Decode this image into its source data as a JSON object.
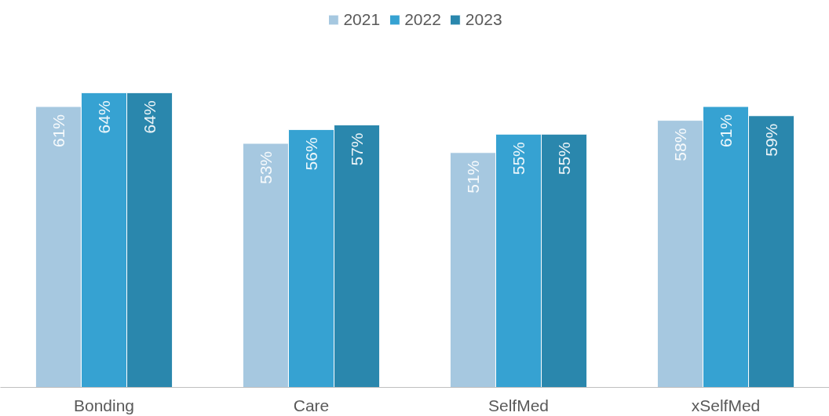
{
  "chart_data": {
    "type": "bar",
    "categories": [
      "Bonding",
      "Care",
      "SelfMed",
      "xSelfMed"
    ],
    "series": [
      {
        "name": "2021",
        "color": "#a6c8e0",
        "values": [
          61,
          53,
          51,
          58
        ],
        "value_labels": [
          "61%",
          "53%",
          "51%",
          "58%"
        ]
      },
      {
        "name": "2022",
        "color": "#36a2d2",
        "values": [
          64,
          56,
          55,
          61
        ],
        "value_labels": [
          "64%",
          "56%",
          "55%",
          "61%"
        ]
      },
      {
        "name": "2023",
        "color": "#2a87ad",
        "values": [
          64,
          57,
          55,
          59
        ],
        "value_labels": [
          "64%",
          "57%",
          "55%",
          "59%"
        ]
      }
    ],
    "legend": "top"
  }
}
